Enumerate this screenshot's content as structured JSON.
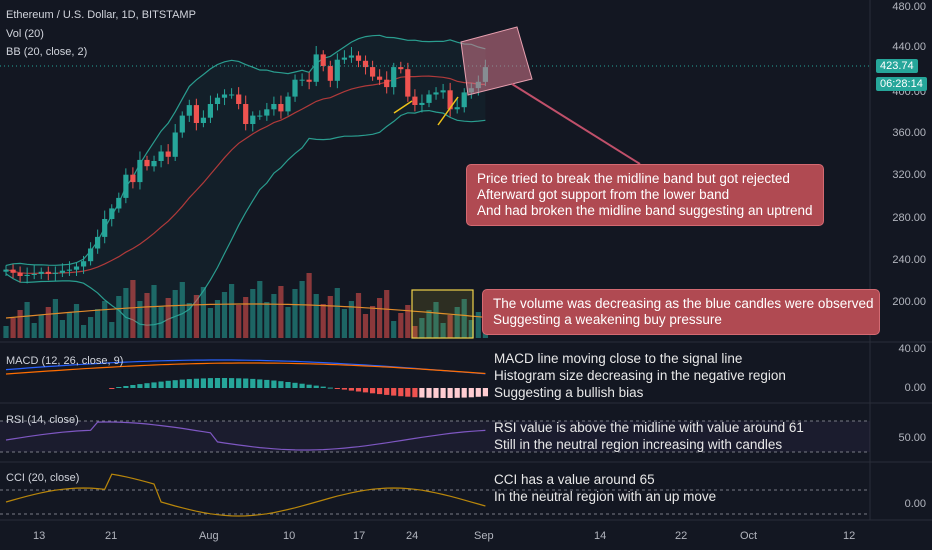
{
  "header": {
    "title": "Ethereum / U.S. Dollar, 1D, BITSTAMP",
    "vol_label": "Vol (20)",
    "bb_label": "BB (20, close, 2)"
  },
  "price_axis": {
    "ticks": [
      "480.00",
      "440.00",
      "400.00",
      "360.00",
      "320.00",
      "280.00",
      "240.00",
      "200.00"
    ],
    "current_price": "423.74",
    "countdown": "06:28:14"
  },
  "indicators": {
    "macd": {
      "label": "MACD (12, 26, close, 9)",
      "ticks": [
        "40.00",
        "0.00"
      ]
    },
    "rsi": {
      "label": "RSI (14, close)",
      "ticks": [
        "50.00"
      ]
    },
    "cci": {
      "label": "CCI (20, close)",
      "ticks": [
        "0.00"
      ]
    }
  },
  "time_axis": [
    "13",
    "21",
    "Aug",
    "10",
    "17",
    "24",
    "Sep",
    "14",
    "22",
    "Oct",
    "12"
  ],
  "annotations": {
    "note1": [
      "Price tried to break the midline band but got rejected",
      "Afterward got support from the lower band",
      "And had broken the midline band suggesting an uptrend"
    ],
    "note2": [
      "The volume was decreasing as the blue candles were observed",
      "Suggesting a weakening buy pressure"
    ],
    "macd_note": [
      "MACD line moving close to the signal line",
      "Histogram size decreasing in the negative region",
      "Suggesting a bullish bias"
    ],
    "rsi_note": [
      "RSI value is above the midline with value around 61",
      "Still in the neutral region increasing with candles"
    ],
    "cci_note": [
      "CCI has a value around 65",
      "In the neutral region with an up move"
    ]
  },
  "colors": {
    "up": "#26a69a",
    "down": "#ef5350",
    "background": "#131722",
    "bb": "#2a9d8f",
    "basis": "#b03a3a",
    "note": "#b04a52"
  },
  "chart_data": {
    "type": "candlestick",
    "closes": [
      232,
      229,
      226,
      227,
      228,
      230,
      228,
      229,
      231,
      232,
      235,
      240,
      252,
      263,
      280,
      290,
      300,
      322,
      315,
      336,
      330,
      335,
      344,
      339,
      362,
      378,
      388,
      371,
      376,
      389,
      395,
      398,
      398,
      389,
      370,
      378,
      378,
      384,
      389,
      382,
      396,
      412,
      412,
      410,
      436,
      425,
      411,
      431,
      433,
      435,
      430,
      424,
      415,
      412,
      405,
      424,
      422,
      396,
      388,
      390,
      398,
      400,
      402,
      384,
      386,
      400,
      404,
      410,
      424
    ]
  }
}
